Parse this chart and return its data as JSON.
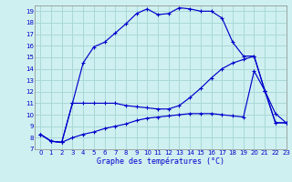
{
  "xlabel": "Graphe des températures (°C)",
  "bg_color": "#cff0f0",
  "grid_color": "#a8d8d8",
  "line_color": "#0000cc",
  "hours": [
    0,
    1,
    2,
    3,
    4,
    5,
    6,
    7,
    8,
    9,
    10,
    11,
    12,
    13,
    14,
    15,
    16,
    17,
    18,
    19,
    20,
    21,
    22,
    23
  ],
  "line1": [
    8.3,
    7.7,
    7.6,
    11.0,
    14.5,
    15.9,
    16.3,
    17.1,
    17.9,
    18.8,
    19.2,
    18.7,
    18.8,
    19.3,
    19.2,
    19.0,
    19.0,
    18.4,
    16.3,
    15.1,
    15.1,
    12.1,
    10.1,
    9.3
  ],
  "line2": [
    8.3,
    7.7,
    7.6,
    11.0,
    11.0,
    11.0,
    11.0,
    11.0,
    10.8,
    10.7,
    10.6,
    10.5,
    10.5,
    10.8,
    11.5,
    12.3,
    13.2,
    14.0,
    14.5,
    14.8,
    15.1,
    12.1,
    9.3,
    9.3
  ],
  "line3": [
    8.3,
    7.7,
    7.6,
    8.0,
    8.3,
    8.5,
    8.8,
    9.0,
    9.2,
    9.5,
    9.7,
    9.8,
    9.9,
    10.0,
    10.1,
    10.1,
    10.1,
    10.0,
    9.9,
    9.8,
    13.8,
    12.1,
    9.3,
    9.3
  ],
  "ylim": [
    7,
    19.5
  ],
  "xlim": [
    -0.5,
    23
  ],
  "yticks": [
    7,
    8,
    9,
    10,
    11,
    12,
    13,
    14,
    15,
    16,
    17,
    18,
    19
  ],
  "xticks": [
    0,
    1,
    2,
    3,
    4,
    5,
    6,
    7,
    8,
    9,
    10,
    11,
    12,
    13,
    14,
    15,
    16,
    17,
    18,
    19,
    20,
    21,
    22,
    23
  ],
  "figsize": [
    3.2,
    2.0
  ],
  "dpi": 100
}
